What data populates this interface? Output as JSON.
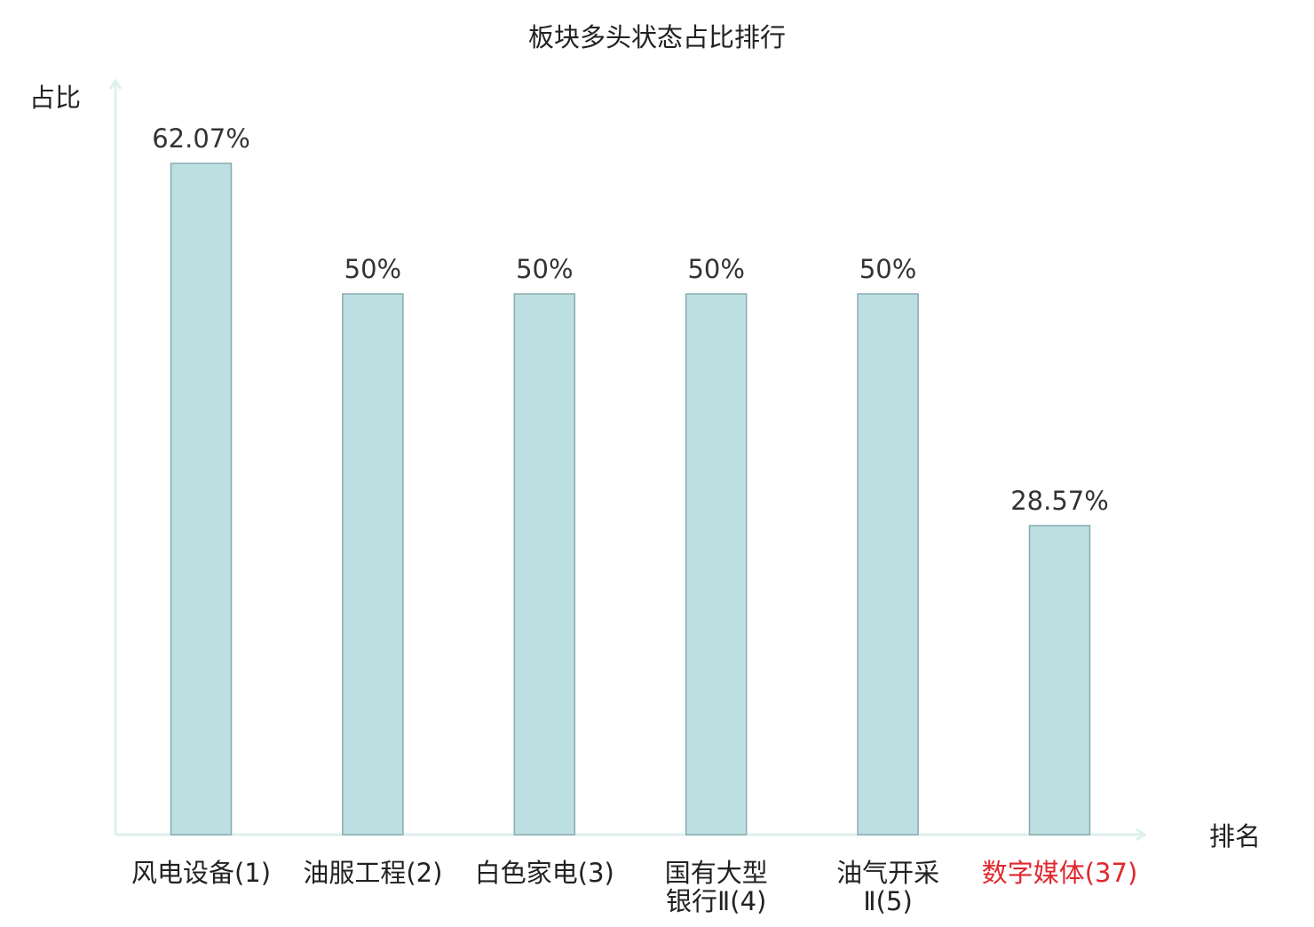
{
  "chart_data": {
    "type": "bar",
    "title": "板块多头状态占比排行",
    "ylabel": "占比",
    "xlabel": "排名",
    "categories": [
      [
        "风电设备(1)"
      ],
      [
        "油服工程(2)"
      ],
      [
        "白色家电(3)"
      ],
      [
        "国有大型",
        "银行Ⅱ(4)"
      ],
      [
        "油气开采",
        "Ⅱ(5)"
      ],
      [
        "数字媒体(37)"
      ]
    ],
    "values": [
      62.07,
      50,
      50,
      50,
      50,
      28.57
    ],
    "value_labels": [
      "62.07%",
      "50%",
      "50%",
      "50%",
      "50%",
      "28.57%"
    ],
    "highlight_index": 5,
    "ylim": [
      0,
      70
    ],
    "grid": false,
    "colors": {
      "bar_fill": "#bce0e2",
      "bar_stroke": "#8aaaae",
      "axis": "#ddf0ee",
      "text": "#333333",
      "label_text": "#222222",
      "highlight": "#e0282e"
    }
  }
}
